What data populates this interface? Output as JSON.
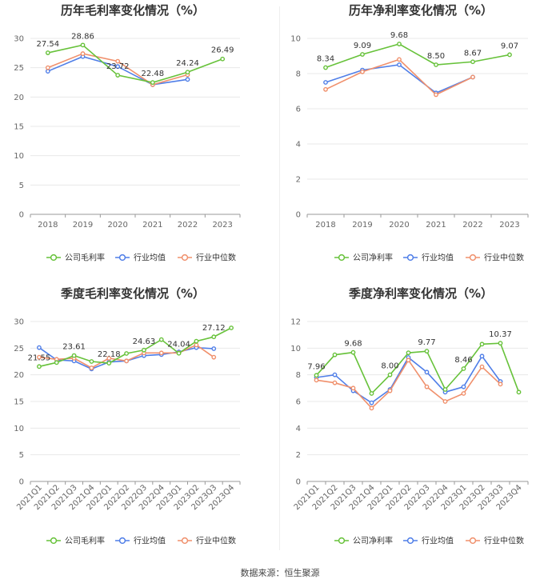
{
  "source": "数据来源：恒生聚源",
  "colors": {
    "company": "#67c23a",
    "industry_avg": "#4f7ee8",
    "industry_median": "#f0906c",
    "grid": "#e8e8e8",
    "axis": "#999999"
  },
  "chart_data": [
    {
      "type": "line",
      "title": "历年毛利率变化情况（%）",
      "categories": [
        "2018",
        "2019",
        "2020",
        "2021",
        "2022",
        "2023"
      ],
      "ylim": [
        0,
        30
      ],
      "yticks": [
        0,
        5,
        10,
        15,
        20,
        25,
        30
      ],
      "legend": [
        "公司毛利率",
        "行业均值",
        "行业中位数"
      ],
      "series": [
        {
          "name": "公司毛利率",
          "color": "#67c23a",
          "values": [
            27.54,
            28.86,
            23.72,
            22.48,
            24.24,
            26.49
          ]
        },
        {
          "name": "行业均值",
          "color": "#4f7ee8",
          "values": [
            24.4,
            26.9,
            25.2,
            22.1,
            23.0,
            null
          ]
        },
        {
          "name": "行业中位数",
          "color": "#f0906c",
          "values": [
            25.0,
            27.4,
            26.1,
            22.1,
            23.8,
            null
          ]
        }
      ],
      "labels": [
        {
          "i": 0,
          "text": "27.54"
        },
        {
          "i": 1,
          "text": "28.86"
        },
        {
          "i": 2,
          "text": "23.72"
        },
        {
          "i": 3,
          "text": "22.48"
        },
        {
          "i": 4,
          "text": "24.24"
        },
        {
          "i": 5,
          "text": "26.49"
        }
      ]
    },
    {
      "type": "line",
      "title": "历年净利率变化情况（%）",
      "categories": [
        "2018",
        "2019",
        "2020",
        "2021",
        "2022",
        "2023"
      ],
      "ylim": [
        0,
        10
      ],
      "yticks": [
        0,
        2,
        4,
        6,
        8,
        10
      ],
      "legend": [
        "公司净利率",
        "行业均值",
        "行业中位数"
      ],
      "series": [
        {
          "name": "公司净利率",
          "color": "#67c23a",
          "values": [
            8.34,
            9.09,
            9.68,
            8.5,
            8.67,
            9.07
          ]
        },
        {
          "name": "行业均值",
          "color": "#4f7ee8",
          "values": [
            7.5,
            8.2,
            8.5,
            6.9,
            7.8,
            null
          ]
        },
        {
          "name": "行业中位数",
          "color": "#f0906c",
          "values": [
            7.1,
            8.1,
            8.8,
            6.8,
            7.8,
            null
          ]
        }
      ],
      "labels": [
        {
          "i": 0,
          "text": "8.34"
        },
        {
          "i": 1,
          "text": "9.09"
        },
        {
          "i": 2,
          "text": "9.68"
        },
        {
          "i": 3,
          "text": "8.50"
        },
        {
          "i": 4,
          "text": "8.67"
        },
        {
          "i": 5,
          "text": "9.07"
        }
      ]
    },
    {
      "type": "line",
      "title": "季度毛利率变化情况（%）",
      "categories": [
        "2021Q1",
        "2021Q2",
        "2021Q3",
        "2021Q4",
        "2022Q1",
        "2022Q2",
        "2022Q3",
        "2022Q4",
        "2023Q1",
        "2023Q2",
        "2023Q3",
        "2023Q4"
      ],
      "ylim": [
        0,
        30
      ],
      "yticks": [
        0,
        5,
        10,
        15,
        20,
        25,
        30
      ],
      "legend": [
        "公司毛利率",
        "行业均值",
        "行业中位数"
      ],
      "series": [
        {
          "name": "公司毛利率",
          "color": "#67c23a",
          "values": [
            21.55,
            22.3,
            23.61,
            22.5,
            22.18,
            24.0,
            24.63,
            26.6,
            24.04,
            26.3,
            27.12,
            28.8
          ]
        },
        {
          "name": "行业均值",
          "color": "#4f7ee8",
          "values": [
            25.1,
            22.8,
            22.6,
            21.1,
            22.4,
            22.6,
            23.6,
            23.8,
            24.3,
            25.1,
            24.9,
            null
          ]
        },
        {
          "name": "行业中位数",
          "color": "#f0906c",
          "values": [
            23.3,
            22.9,
            23.1,
            21.3,
            23.1,
            22.6,
            24.1,
            24.1,
            24.1,
            25.6,
            23.3,
            null
          ]
        }
      ],
      "labels": [
        {
          "i": 0,
          "text": "21.55"
        },
        {
          "i": 2,
          "text": "23.61"
        },
        {
          "i": 4,
          "text": "22.18"
        },
        {
          "i": 6,
          "text": "24.63"
        },
        {
          "i": 8,
          "text": "24.04"
        },
        {
          "i": 10,
          "text": "27.12"
        }
      ]
    },
    {
      "type": "line",
      "title": "季度净利率变化情况（%）",
      "categories": [
        "2021Q1",
        "2021Q2",
        "2021Q3",
        "2021Q4",
        "2022Q1",
        "2022Q2",
        "2022Q3",
        "2022Q4",
        "2023Q1",
        "2023Q2",
        "2023Q3",
        "2023Q4"
      ],
      "ylim": [
        0,
        12
      ],
      "yticks": [
        0,
        2,
        4,
        6,
        8,
        10,
        12
      ],
      "legend": [
        "公司净利率",
        "行业均值",
        "行业中位数"
      ],
      "series": [
        {
          "name": "公司净利率",
          "color": "#67c23a",
          "values": [
            7.96,
            9.5,
            9.68,
            6.6,
            8.0,
            9.65,
            9.77,
            6.9,
            8.46,
            10.3,
            10.37,
            6.7
          ]
        },
        {
          "name": "行业均值",
          "color": "#4f7ee8",
          "values": [
            7.8,
            8.0,
            6.8,
            5.9,
            6.9,
            9.3,
            8.2,
            6.7,
            7.1,
            9.4,
            7.5,
            null
          ]
        },
        {
          "name": "行业中位数",
          "color": "#f0906c",
          "values": [
            7.6,
            7.4,
            7.0,
            5.5,
            6.8,
            9.1,
            7.1,
            6.0,
            6.6,
            8.6,
            7.3,
            null
          ]
        }
      ],
      "labels": [
        {
          "i": 0,
          "text": "7.96"
        },
        {
          "i": 2,
          "text": "9.68"
        },
        {
          "i": 4,
          "text": "8.00"
        },
        {
          "i": 6,
          "text": "9.77"
        },
        {
          "i": 8,
          "text": "8.46"
        },
        {
          "i": 10,
          "text": "10.37"
        }
      ]
    }
  ]
}
